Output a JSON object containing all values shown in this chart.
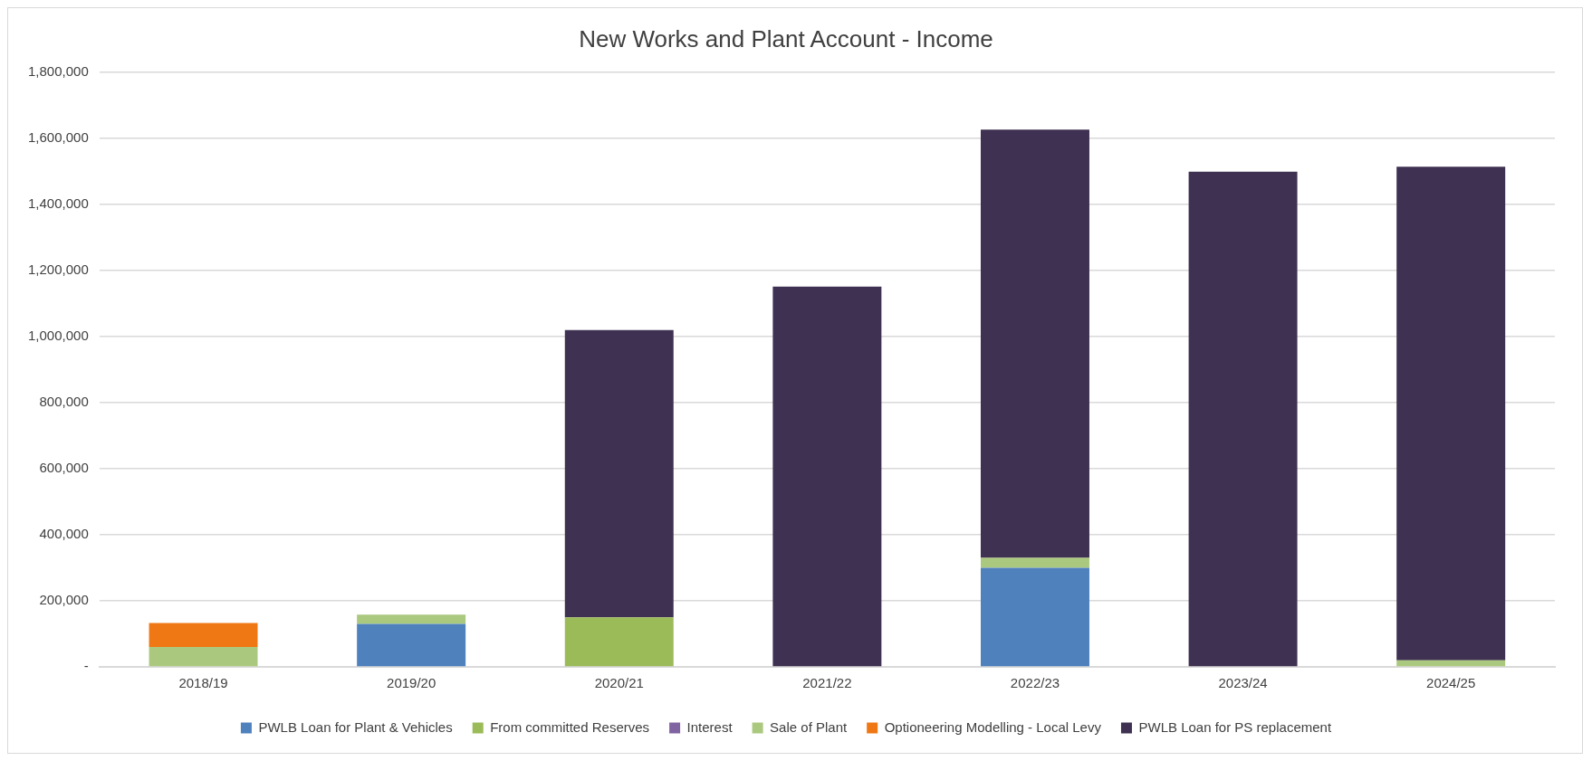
{
  "chart_data": {
    "type": "bar",
    "title": "New Works and Plant Account - Income",
    "stacked": true,
    "grid": "y",
    "legend": "bottom",
    "categories": [
      "2018/19",
      "2019/20",
      "2020/21",
      "2021/22",
      "2022/23",
      "2023/24",
      "2024/25"
    ],
    "ylim": [
      0,
      1800000
    ],
    "yticks": [
      {
        "value": 0,
        "label": "-"
      },
      {
        "value": 200000,
        "label": "200,000"
      },
      {
        "value": 400000,
        "label": "400,000"
      },
      {
        "value": 600000,
        "label": "600,000"
      },
      {
        "value": 800000,
        "label": "800,000"
      },
      {
        "value": 1000000,
        "label": "1,000,000"
      },
      {
        "value": 1200000,
        "label": "1,200,000"
      },
      {
        "value": 1400000,
        "label": "1,400,000"
      },
      {
        "value": 1600000,
        "label": "1,600,000"
      },
      {
        "value": 1800000,
        "label": "1,800,000"
      }
    ],
    "series": [
      {
        "name": "PWLB Loan for Plant & Vehicles",
        "color": "#4f81bd",
        "values": [
          0,
          130000,
          0,
          0,
          300000,
          0,
          0
        ]
      },
      {
        "name": "From committed Reserves",
        "color": "#9bbb59",
        "values": [
          0,
          0,
          150000,
          0,
          0,
          0,
          0
        ]
      },
      {
        "name": "Interest",
        "color": "#8064a2",
        "values": [
          0,
          0,
          0,
          0,
          0,
          0,
          0
        ]
      },
      {
        "name": "Sale of Plant",
        "color": "#abc97e",
        "values": [
          60000,
          28000,
          0,
          0,
          30000,
          0,
          20000
        ]
      },
      {
        "name": "Optioneering Modelling - Local Levy",
        "color": "#f07814",
        "values": [
          73000,
          0,
          0,
          0,
          0,
          0,
          0
        ]
      },
      {
        "name": "PWLB Loan for PS replacement",
        "color": "#3f3151",
        "values": [
          0,
          0,
          870000,
          1152000,
          1297000,
          1500000,
          1495000
        ]
      }
    ]
  }
}
